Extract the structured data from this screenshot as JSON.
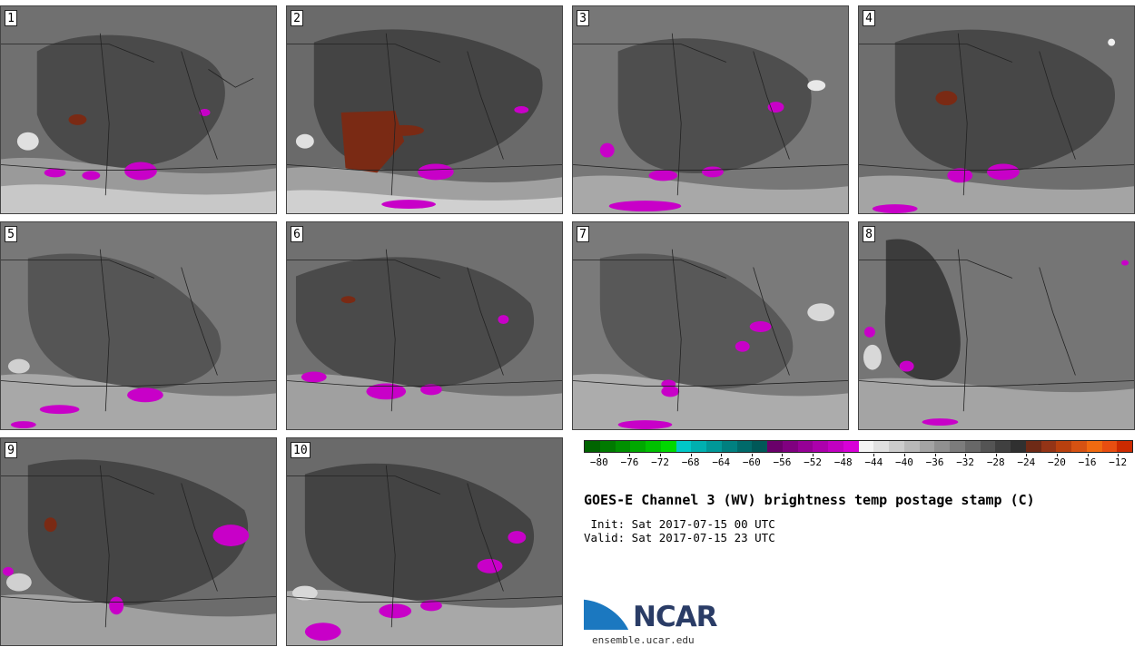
{
  "panels": [
    {
      "label": "1"
    },
    {
      "label": "2"
    },
    {
      "label": "3"
    },
    {
      "label": "4"
    },
    {
      "label": "5"
    },
    {
      "label": "6"
    },
    {
      "label": "7"
    },
    {
      "label": "8"
    },
    {
      "label": "9"
    },
    {
      "label": "10"
    }
  ],
  "colorbar": {
    "colors": [
      "#006400",
      "#007a00",
      "#009000",
      "#00a800",
      "#00c000",
      "#00d800",
      "#00c8c8",
      "#00b0b0",
      "#009898",
      "#008080",
      "#006a6a",
      "#005858",
      "#6a006a",
      "#800080",
      "#960096",
      "#ac00ac",
      "#c200c2",
      "#d800d8",
      "#f4f4f4",
      "#e0e0e0",
      "#cccccc",
      "#b8b8b8",
      "#a4a4a4",
      "#909090",
      "#7c7c7c",
      "#686868",
      "#545454",
      "#404040",
      "#303030",
      "#6e2a16",
      "#943416",
      "#b8400e",
      "#d65212",
      "#f06a10",
      "#e84e10",
      "#cc2a00"
    ],
    "ticks": [
      "−80",
      "−76",
      "−72",
      "−68",
      "−64",
      "−60",
      "−56",
      "−52",
      "−48",
      "−44",
      "−40",
      "−36",
      "−32",
      "−28",
      "−24",
      "−20",
      "−16",
      "−12"
    ]
  },
  "title": "GOES-E Channel 3 (WV) brightness temp postage stamp (C)",
  "init": " Init: Sat 2017-07-15 00 UTC",
  "valid": "Valid: Sat 2017-07-15 23 UTC",
  "logo": {
    "text": "NCAR",
    "color": "#2a3c66",
    "swoosh_color": "#1b78c0"
  },
  "site": "ensemble.ucar.edu"
}
